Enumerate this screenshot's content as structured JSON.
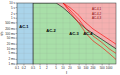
{
  "chart_data": {
    "type": "line",
    "xlabel": "I",
    "ylabel": "t/s",
    "log": true,
    "grid": true,
    "xlim": [
      0.1,
      2000
    ],
    "ylim": [
      0.001,
      10
    ],
    "xticks": [
      0.1,
      0.2,
      0.5,
      1,
      2,
      5,
      10,
      20,
      50,
      100,
      200,
      500,
      1000
    ],
    "yticks": [
      {
        "value": 0.001,
        "label": "1 ms"
      },
      {
        "value": 0.002,
        "label": "2 ms"
      },
      {
        "value": 0.005,
        "label": "5 ms"
      },
      {
        "value": 0.01,
        "label": "10 ms"
      },
      {
        "value": 0.02,
        "label": "20 ms"
      },
      {
        "value": 0.05,
        "label": "50 ms"
      },
      {
        "value": 0.1,
        "label": "100 ms"
      },
      {
        "value": 0.2,
        "label": "200 ms"
      },
      {
        "value": 0.5,
        "label": "500 ms"
      },
      {
        "value": 1,
        "label": "1 s"
      },
      {
        "value": 2,
        "label": "2 s"
      },
      {
        "value": 5,
        "label": "5 s"
      },
      {
        "value": 10,
        "label": "10 s"
      }
    ],
    "series": [
      {
        "x": [
          0.5,
          1,
          2,
          5,
          10,
          20,
          50,
          100,
          200,
          500,
          1000,
          2000
        ],
        "values": [
          10,
          10,
          10,
          10,
          5,
          2,
          0.5,
          0.2,
          0.1,
          0.04,
          0.02,
          0.01
        ],
        "color": "black"
      },
      {
        "x": [
          10,
          20,
          30,
          50,
          70,
          100,
          200,
          500,
          1000,
          2000
        ],
        "values": [
          10,
          5,
          3,
          1.5,
          0.8,
          0.5,
          0.2,
          0.08,
          0.04,
          0.02
        ],
        "color": "red"
      },
      {
        "x": [
          10,
          20,
          30,
          50,
          70,
          100,
          200,
          500,
          1000,
          2000
        ],
        "values": [
          10,
          3.5,
          1.8,
          0.8,
          0.4,
          0.2,
          0.07,
          0.025,
          0.01,
          0.005
        ],
        "color": "red"
      },
      {
        "x": [
          10,
          20,
          30,
          50,
          70,
          100,
          200,
          500,
          1000,
          2000
        ],
        "values": [
          10,
          2.5,
          1.2,
          0.45,
          0.22,
          0.1,
          0.033,
          0.012,
          0.005,
          0.002
        ],
        "color": "red"
      }
    ],
    "vlines": [
      {
        "x": 0.5,
        "color": "black"
      }
    ],
    "zones": [
      {
        "label": "AC-1",
        "color": "#aad4ea",
        "label_x": 0.2,
        "label_y": 0.3
      },
      {
        "label": "AC-2",
        "color": "#a8dfa8",
        "label_x": 3,
        "label_y": 0.15
      },
      {
        "label": "AC-3",
        "color": "#d8e888",
        "label_x": 30,
        "label_y": 0.1
      },
      {
        "label": "AC-4",
        "color": "#f5b0b0",
        "label_x": 120,
        "label_y": 0.1
      }
    ],
    "annotations": [
      {
        "text": "AC-4,1",
        "x": 180,
        "y": 4,
        "color": "darkred"
      },
      {
        "text": "AC-4,2",
        "x": 180,
        "y": 2,
        "color": "darkred"
      },
      {
        "text": "AC-4,3",
        "x": 180,
        "y": 1.1,
        "color": "darkred"
      }
    ]
  }
}
